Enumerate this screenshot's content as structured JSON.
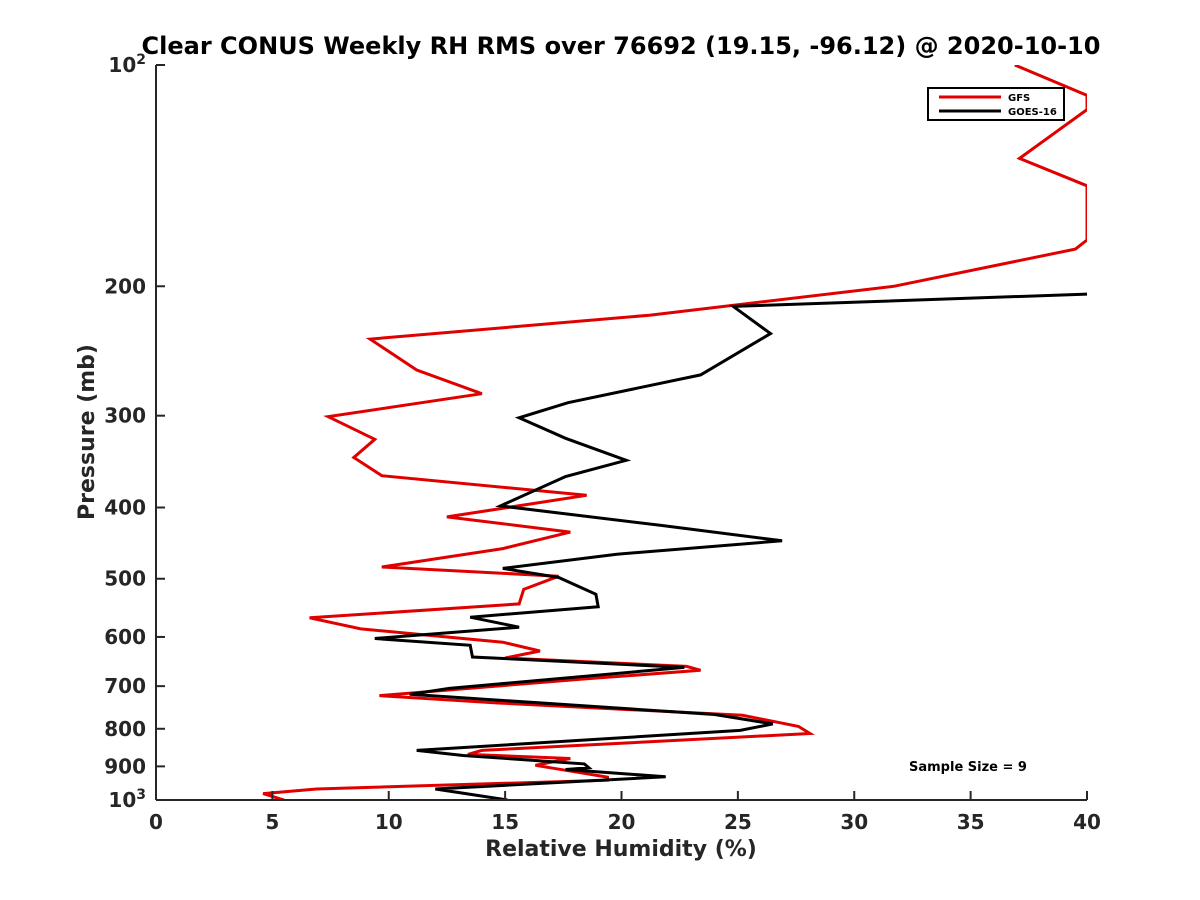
{
  "chart_data": {
    "type": "line",
    "title": "Clear CONUS Weekly RH RMS over 76692 (19.15, -96.12) @ 2020-10-10",
    "xlabel": "Relative Humidity (%)",
    "ylabel": "Pressure (mb)",
    "xlim": [
      0,
      40
    ],
    "ylim": [
      100,
      1000
    ],
    "yscale": "log",
    "y_reversed": true,
    "x_ticks": [
      "0",
      "5",
      "10",
      "15",
      "20",
      "25",
      "30",
      "35",
      "40"
    ],
    "y_ticks": [
      {
        "value": 100,
        "base": "10",
        "exp": "2"
      },
      {
        "value": 200,
        "label": "200"
      },
      {
        "value": 300,
        "label": "300"
      },
      {
        "value": 400,
        "label": "400"
      },
      {
        "value": 500,
        "label": "500"
      },
      {
        "value": 600,
        "label": "600"
      },
      {
        "value": 700,
        "label": "700"
      },
      {
        "value": 800,
        "label": "800"
      },
      {
        "value": 900,
        "label": "900"
      },
      {
        "value": 1000,
        "base": "10",
        "exp": "3"
      }
    ],
    "legend_position": "top-right",
    "annotation": "Sample Size = 9",
    "series": [
      {
        "name": "GFS",
        "color": "#e00000",
        "points": [
          [
            36.9,
            100
          ],
          [
            40.0,
            110
          ],
          [
            40.0,
            115
          ],
          [
            37.1,
            134
          ],
          [
            40.0,
            146
          ],
          [
            40.0,
            173
          ],
          [
            39.5,
            178
          ],
          [
            31.7,
            200
          ],
          [
            21.2,
            219
          ],
          [
            9.2,
            236
          ],
          [
            11.2,
            260
          ],
          [
            14.0,
            280
          ],
          [
            7.4,
            301
          ],
          [
            9.4,
            323
          ],
          [
            8.5,
            342
          ],
          [
            9.7,
            362
          ],
          [
            18.5,
            385
          ],
          [
            12.5,
            412
          ],
          [
            17.8,
            432
          ],
          [
            14.9,
            455
          ],
          [
            9.7,
            482
          ],
          [
            17.3,
            496
          ],
          [
            15.8,
            517
          ],
          [
            15.6,
            541
          ],
          [
            6.6,
            565
          ],
          [
            8.8,
            585
          ],
          [
            14.9,
            610
          ],
          [
            16.5,
            627
          ],
          [
            15.0,
            641
          ],
          [
            22.8,
            658
          ],
          [
            23.4,
            666
          ],
          [
            18.5,
            684
          ],
          [
            9.6,
            721
          ],
          [
            14.7,
            738
          ],
          [
            25.2,
            767
          ],
          [
            26.8,
            785
          ],
          [
            27.6,
            794
          ],
          [
            28.1,
            812
          ],
          [
            14.0,
            856
          ],
          [
            13.4,
            867
          ],
          [
            17.8,
            878
          ],
          [
            16.3,
            897
          ],
          [
            19.4,
            931
          ],
          [
            19.4,
            940
          ],
          [
            6.9,
            966
          ],
          [
            4.6,
            980
          ],
          [
            5.5,
            1000
          ]
        ]
      },
      {
        "name": "GOES-16",
        "color": "#000000",
        "points": [
          [
            40.0,
            205
          ],
          [
            24.8,
            213
          ],
          [
            26.4,
            232
          ],
          [
            23.4,
            264
          ],
          [
            17.7,
            288
          ],
          [
            15.6,
            302
          ],
          [
            17.6,
            322
          ],
          [
            20.2,
            345
          ],
          [
            17.6,
            363
          ],
          [
            14.8,
            398
          ],
          [
            21.7,
            423
          ],
          [
            26.9,
            444
          ],
          [
            19.8,
            463
          ],
          [
            14.9,
            484
          ],
          [
            17.3,
            498
          ],
          [
            18.9,
            525
          ],
          [
            19.0,
            546
          ],
          [
            13.5,
            564
          ],
          [
            15.6,
            582
          ],
          [
            9.4,
            603
          ],
          [
            13.5,
            616
          ],
          [
            13.6,
            639
          ],
          [
            22.7,
            660
          ],
          [
            12.6,
            705
          ],
          [
            10.9,
            718
          ],
          [
            24.0,
            765
          ],
          [
            26.5,
            788
          ],
          [
            25.1,
            804
          ],
          [
            11.2,
            856
          ],
          [
            13.2,
            870
          ],
          [
            18.4,
            893
          ],
          [
            18.6,
            904
          ],
          [
            17.6,
            909
          ],
          [
            21.9,
            930
          ],
          [
            12.0,
            966
          ],
          [
            13.1,
            978
          ],
          [
            15.1,
            1000
          ]
        ]
      }
    ]
  }
}
